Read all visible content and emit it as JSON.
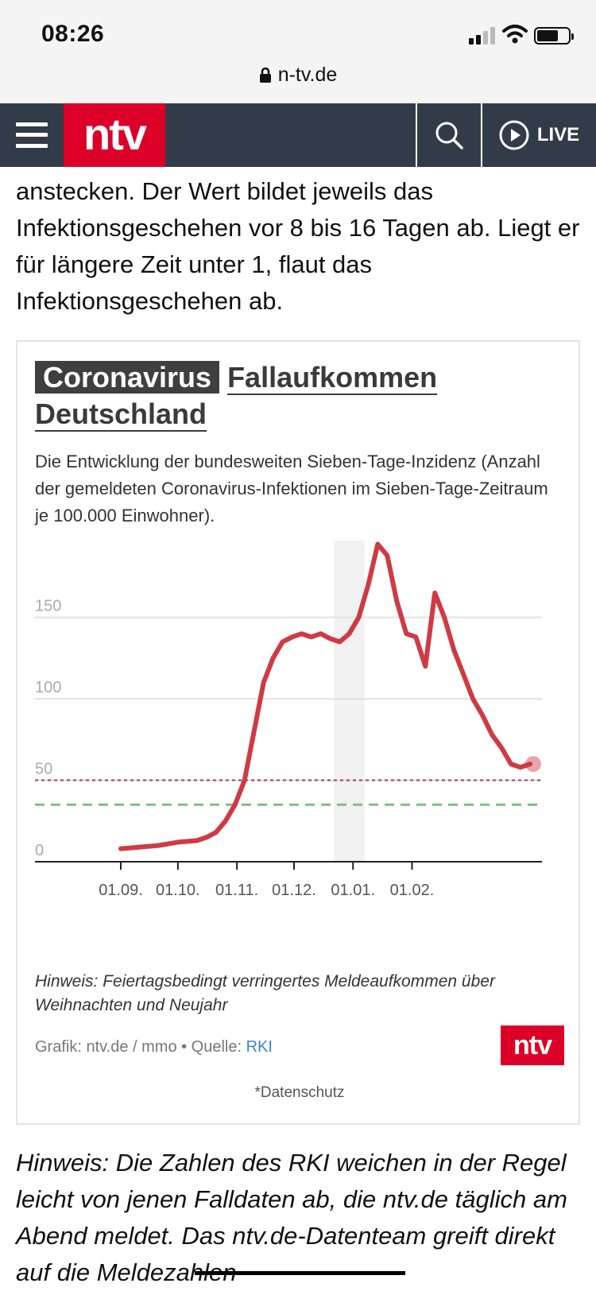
{
  "status_bar": {
    "time": "08:26",
    "url": "n-tv.de"
  },
  "nav": {
    "logo": "ntv",
    "live_label": "LIVE"
  },
  "article": {
    "text_above": "anstecken. Der Wert bildet jeweils das Infektionsgeschehen vor 8 bis 16 Tagen ab. Liegt er für längere Zeit unter 1, flaut das Infektionsgeschehen ab.",
    "text_below": "Hinweis: Die Zahlen des RKI weichen in der Regel leicht von jenen Falldaten ab, die ntv.de täglich am Abend meldet. Das ntv.de-Datenteam greift direkt auf die Meldezahlen"
  },
  "card": {
    "title_badge": "Coronavirus",
    "title_rest": "Fallaufkommen Deutschland",
    "subtitle": "Die Entwicklung der bundesweiten Sieben-Tage-Inzidenz (Anzahl der gemeldeten Coronavirus-Infektionen im Sieben-Tage-Zeitraum je 100.000 Einwohner).",
    "note": "Hinweis: Feiertagsbedingt verringertes Meldeaufkommen über Weihnachten und Neujahr",
    "source_prefix": "Grafik: ntv.de / mmo • Quelle: ",
    "source_link": "RKI",
    "privacy": "*Datenschutz",
    "logo": "ntv"
  },
  "chart_data": {
    "type": "line",
    "y_ticks": [
      "0",
      "50",
      "100",
      "150"
    ],
    "x_ticks": [
      "01.09.",
      "01.10.",
      "01.11.",
      "01.12.",
      "01.01.",
      "01.02."
    ],
    "ylim": [
      0,
      200
    ],
    "threshold_lines": [
      {
        "value": 50,
        "style": "dotted",
        "color": "#a0385a"
      },
      {
        "value": 35,
        "style": "dashed",
        "color": "#7fbf7f"
      }
    ],
    "highlight_period": [
      "24.12.",
      "10.01."
    ],
    "series": [
      {
        "color": "#cf3a43",
        "x": [
          0,
          10,
          20,
          30,
          40,
          45,
          50,
          55,
          60,
          65,
          70,
          75,
          80,
          85,
          90,
          95,
          100,
          105,
          110,
          115,
          120,
          125,
          130,
          135,
          140,
          145,
          150,
          155,
          160,
          165,
          170,
          175,
          180,
          185,
          190,
          195,
          200,
          205,
          210,
          215
        ],
        "y": [
          8,
          9,
          10,
          12,
          13,
          15,
          18,
          25,
          35,
          50,
          80,
          110,
          125,
          135,
          138,
          140,
          138,
          140,
          137,
          135,
          140,
          150,
          170,
          195,
          188,
          160,
          140,
          138,
          120,
          165,
          150,
          130,
          115,
          100,
          90,
          78,
          70,
          60,
          58,
          60
        ]
      }
    ]
  }
}
